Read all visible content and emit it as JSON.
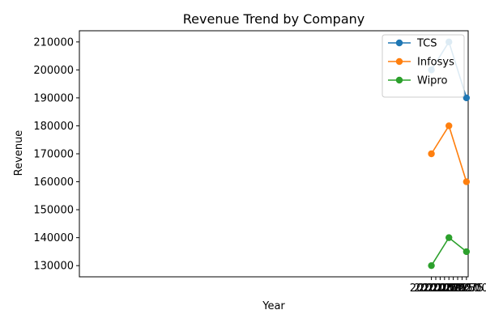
{
  "chart_data": {
    "type": "line",
    "title": "Revenue Trend by Company",
    "xlabel": "Year",
    "ylabel": "Revenue",
    "x": [
      2020,
      2021,
      2022
    ],
    "xlim": [
      1999.9,
      2022.1
    ],
    "ylim": [
      126000,
      214000
    ],
    "x_ticks": [
      2020.0,
      2020.25,
      2020.5,
      2020.75,
      2021.0,
      2021.25,
      2021.5,
      2021.75,
      2022.0
    ],
    "x_tick_labels": [
      "2020.00",
      "2020.25",
      "2020.50",
      "2020.75",
      "2021.00",
      "2021.25",
      "2021.50",
      "2021.75",
      "2022.00"
    ],
    "y_ticks": [
      130000,
      140000,
      150000,
      160000,
      170000,
      180000,
      190000,
      200000,
      210000
    ],
    "y_tick_labels": [
      "130000",
      "140000",
      "150000",
      "160000",
      "170000",
      "180000",
      "190000",
      "200000",
      "210000"
    ],
    "grid": false,
    "legend_position": "top-right",
    "series": [
      {
        "name": "TCS",
        "color": "#1f77b4",
        "values": [
          200000,
          210000,
          190000
        ]
      },
      {
        "name": "Infosys",
        "color": "#ff7f0e",
        "values": [
          170000,
          180000,
          160000
        ]
      },
      {
        "name": "Wipro",
        "color": "#2ca02c",
        "values": [
          130000,
          140000,
          135000
        ]
      }
    ]
  }
}
